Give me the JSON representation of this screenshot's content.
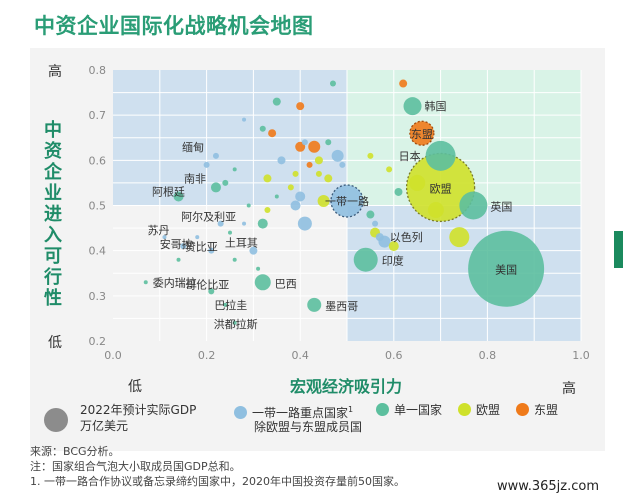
{
  "title": "中资企业国际化战略机会地图",
  "y_axis_title": "中资企业进入可行性",
  "x_axis_title": "宏观经济吸引力",
  "y_high": "高",
  "y_low": "低",
  "x_low": "低",
  "x_high": "高",
  "legend": {
    "size_label_line1": "2022年预计实际GDP",
    "size_label_line2": "万亿美元",
    "items": [
      {
        "label": "一带一路重点国家",
        "color": "#8fbfe0"
      },
      {
        "label": "单一国家",
        "color": "#5cbf9e"
      },
      {
        "label": "欧盟",
        "color": "#cfe12a"
      },
      {
        "label": "东盟",
        "color": "#ef7a1a"
      }
    ],
    "sup": "1",
    "subnote": "除欧盟与东盟成员国"
  },
  "footnotes": [
    "来源：BCG分析。",
    "注：国家组合气泡大小取成员国GDP总和。",
    "1. 一带一路合作协议或备忘录缔约国家中，2020年中国投资存量前50国家。"
  ],
  "watermark": "www.365jz.com",
  "colors": {
    "title_green": "#2a9d76",
    "quad_blue": "#cfe0ef",
    "quad_green": "#d9f3e7",
    "belt_road": "#8fbfe0",
    "single": "#5cbf9e",
    "eu": "#cfe12a",
    "asean": "#ef7a1a"
  },
  "chart_data": {
    "type": "scatter",
    "xlim": [
      0.0,
      1.0
    ],
    "ylim": [
      0.2,
      0.8
    ],
    "x_ticks": [
      "0.0",
      "0.2",
      "0.4",
      "0.6",
      "0.8",
      "1.0"
    ],
    "y_ticks": [
      "0.2",
      "0.3",
      "0.4",
      "0.5",
      "0.6",
      "0.7",
      "0.8"
    ],
    "quadrant_split": {
      "x": 0.5,
      "y": 0.5
    },
    "labeled_points": [
      {
        "label": "韩国",
        "x": 0.64,
        "y": 0.72,
        "r": 9,
        "group": "single"
      },
      {
        "label": "东盟",
        "x": 0.66,
        "y": 0.66,
        "r": 12,
        "group": "asean_group"
      },
      {
        "label": "日本",
        "x": 0.7,
        "y": 0.61,
        "r": 15,
        "group": "single"
      },
      {
        "label": "欧盟",
        "x": 0.7,
        "y": 0.54,
        "r": 34,
        "group": "eu_group"
      },
      {
        "label": "英国",
        "x": 0.77,
        "y": 0.5,
        "r": 14,
        "group": "single"
      },
      {
        "label": "美国",
        "x": 0.84,
        "y": 0.36,
        "r": 38,
        "group": "single"
      },
      {
        "label": "一带一路",
        "x": 0.5,
        "y": 0.51,
        "r": 16,
        "group": "belt_group"
      },
      {
        "label": "以色列",
        "x": 0.57,
        "y": 0.43,
        "r": 4,
        "group": "belt"
      },
      {
        "label": "印度",
        "x": 0.54,
        "y": 0.38,
        "r": 12,
        "group": "single"
      },
      {
        "label": "缅甸",
        "x": 0.22,
        "y": 0.61,
        "r": 3,
        "group": "belt"
      },
      {
        "label": "南非",
        "x": 0.22,
        "y": 0.54,
        "r": 5,
        "group": "single"
      },
      {
        "label": "阿根廷",
        "x": 0.14,
        "y": 0.52,
        "r": 5,
        "group": "single"
      },
      {
        "label": "阿尔及利亚",
        "x": 0.23,
        "y": 0.46,
        "r": 3,
        "group": "belt"
      },
      {
        "label": "苏丹",
        "x": 0.11,
        "y": 0.43,
        "r": 2,
        "group": "belt"
      },
      {
        "label": "安哥拉",
        "x": 0.15,
        "y": 0.41,
        "r": 3,
        "group": "belt"
      },
      {
        "label": "赞比亚",
        "x": 0.21,
        "y": 0.4,
        "r": 3,
        "group": "belt"
      },
      {
        "label": "土耳其",
        "x": 0.3,
        "y": 0.4,
        "r": 4,
        "group": "belt"
      },
      {
        "label": "哥伦比亚",
        "x": 0.21,
        "y": 0.31,
        "r": 3,
        "group": "single"
      },
      {
        "label": "委内瑞拉",
        "x": 0.07,
        "y": 0.33,
        "r": 2,
        "group": "single"
      },
      {
        "label": "巴西",
        "x": 0.32,
        "y": 0.33,
        "r": 8,
        "group": "single"
      },
      {
        "label": "巴拉圭",
        "x": 0.24,
        "y": 0.28,
        "r": 2,
        "group": "single"
      },
      {
        "label": "墨西哥",
        "x": 0.43,
        "y": 0.28,
        "r": 7,
        "group": "single"
      },
      {
        "label": "洪都拉斯",
        "x": 0.26,
        "y": 0.24,
        "r": 2,
        "group": "single"
      }
    ],
    "other_points": [
      {
        "x": 0.47,
        "y": 0.77,
        "r": 3,
        "group": "single"
      },
      {
        "x": 0.62,
        "y": 0.77,
        "r": 4,
        "group": "asean"
      },
      {
        "x": 0.4,
        "y": 0.72,
        "r": 4,
        "group": "asean"
      },
      {
        "x": 0.35,
        "y": 0.73,
        "r": 4,
        "group": "single"
      },
      {
        "x": 0.32,
        "y": 0.67,
        "r": 3,
        "group": "single"
      },
      {
        "x": 0.28,
        "y": 0.69,
        "r": 2,
        "group": "belt"
      },
      {
        "x": 0.34,
        "y": 0.66,
        "r": 4,
        "group": "asean"
      },
      {
        "x": 0.41,
        "y": 0.64,
        "r": 3,
        "group": "belt"
      },
      {
        "x": 0.43,
        "y": 0.63,
        "r": 6,
        "group": "asean"
      },
      {
        "x": 0.4,
        "y": 0.63,
        "r": 5,
        "group": "asean"
      },
      {
        "x": 0.46,
        "y": 0.64,
        "r": 3,
        "group": "single"
      },
      {
        "x": 0.48,
        "y": 0.61,
        "r": 6,
        "group": "belt"
      },
      {
        "x": 0.44,
        "y": 0.6,
        "r": 4,
        "group": "eu"
      },
      {
        "x": 0.42,
        "y": 0.59,
        "r": 3,
        "group": "asean"
      },
      {
        "x": 0.49,
        "y": 0.59,
        "r": 3,
        "group": "belt"
      },
      {
        "x": 0.36,
        "y": 0.6,
        "r": 4,
        "group": "belt"
      },
      {
        "x": 0.39,
        "y": 0.57,
        "r": 3,
        "group": "eu"
      },
      {
        "x": 0.44,
        "y": 0.57,
        "r": 3,
        "group": "eu"
      },
      {
        "x": 0.46,
        "y": 0.56,
        "r": 4,
        "group": "eu"
      },
      {
        "x": 0.33,
        "y": 0.56,
        "r": 4,
        "group": "eu"
      },
      {
        "x": 0.38,
        "y": 0.54,
        "r": 3,
        "group": "eu"
      },
      {
        "x": 0.35,
        "y": 0.52,
        "r": 2,
        "group": "single"
      },
      {
        "x": 0.4,
        "y": 0.52,
        "r": 5,
        "group": "belt"
      },
      {
        "x": 0.39,
        "y": 0.5,
        "r": 5,
        "group": "belt"
      },
      {
        "x": 0.45,
        "y": 0.51,
        "r": 6,
        "group": "eu"
      },
      {
        "x": 0.24,
        "y": 0.55,
        "r": 3,
        "group": "single"
      },
      {
        "x": 0.26,
        "y": 0.58,
        "r": 2,
        "group": "single"
      },
      {
        "x": 0.2,
        "y": 0.59,
        "r": 3,
        "group": "belt"
      },
      {
        "x": 0.29,
        "y": 0.5,
        "r": 2,
        "group": "single"
      },
      {
        "x": 0.33,
        "y": 0.49,
        "r": 3,
        "group": "eu"
      },
      {
        "x": 0.28,
        "y": 0.46,
        "r": 2,
        "group": "belt"
      },
      {
        "x": 0.32,
        "y": 0.46,
        "r": 5,
        "group": "single"
      },
      {
        "x": 0.41,
        "y": 0.46,
        "r": 7,
        "group": "belt"
      },
      {
        "x": 0.25,
        "y": 0.44,
        "r": 2,
        "group": "single"
      },
      {
        "x": 0.18,
        "y": 0.43,
        "r": 2,
        "group": "belt"
      },
      {
        "x": 0.31,
        "y": 0.36,
        "r": 2,
        "group": "single"
      },
      {
        "x": 0.55,
        "y": 0.48,
        "r": 4,
        "group": "single"
      },
      {
        "x": 0.56,
        "y": 0.46,
        "r": 3,
        "group": "belt"
      },
      {
        "x": 0.56,
        "y": 0.44,
        "r": 5,
        "group": "eu"
      },
      {
        "x": 0.58,
        "y": 0.42,
        "r": 6,
        "group": "belt"
      },
      {
        "x": 0.6,
        "y": 0.41,
        "r": 5,
        "group": "eu"
      },
      {
        "x": 0.55,
        "y": 0.61,
        "r": 3,
        "group": "eu"
      },
      {
        "x": 0.59,
        "y": 0.58,
        "r": 3,
        "group": "eu"
      },
      {
        "x": 0.61,
        "y": 0.53,
        "r": 4,
        "group": "single"
      },
      {
        "x": 0.65,
        "y": 0.55,
        "r": 8,
        "group": "eu"
      },
      {
        "x": 0.69,
        "y": 0.49,
        "r": 8,
        "group": "eu"
      },
      {
        "x": 0.74,
        "y": 0.43,
        "r": 10,
        "group": "eu"
      },
      {
        "x": 0.14,
        "y": 0.38,
        "r": 2,
        "group": "single"
      },
      {
        "x": 0.26,
        "y": 0.38,
        "r": 2,
        "group": "single"
      }
    ]
  }
}
